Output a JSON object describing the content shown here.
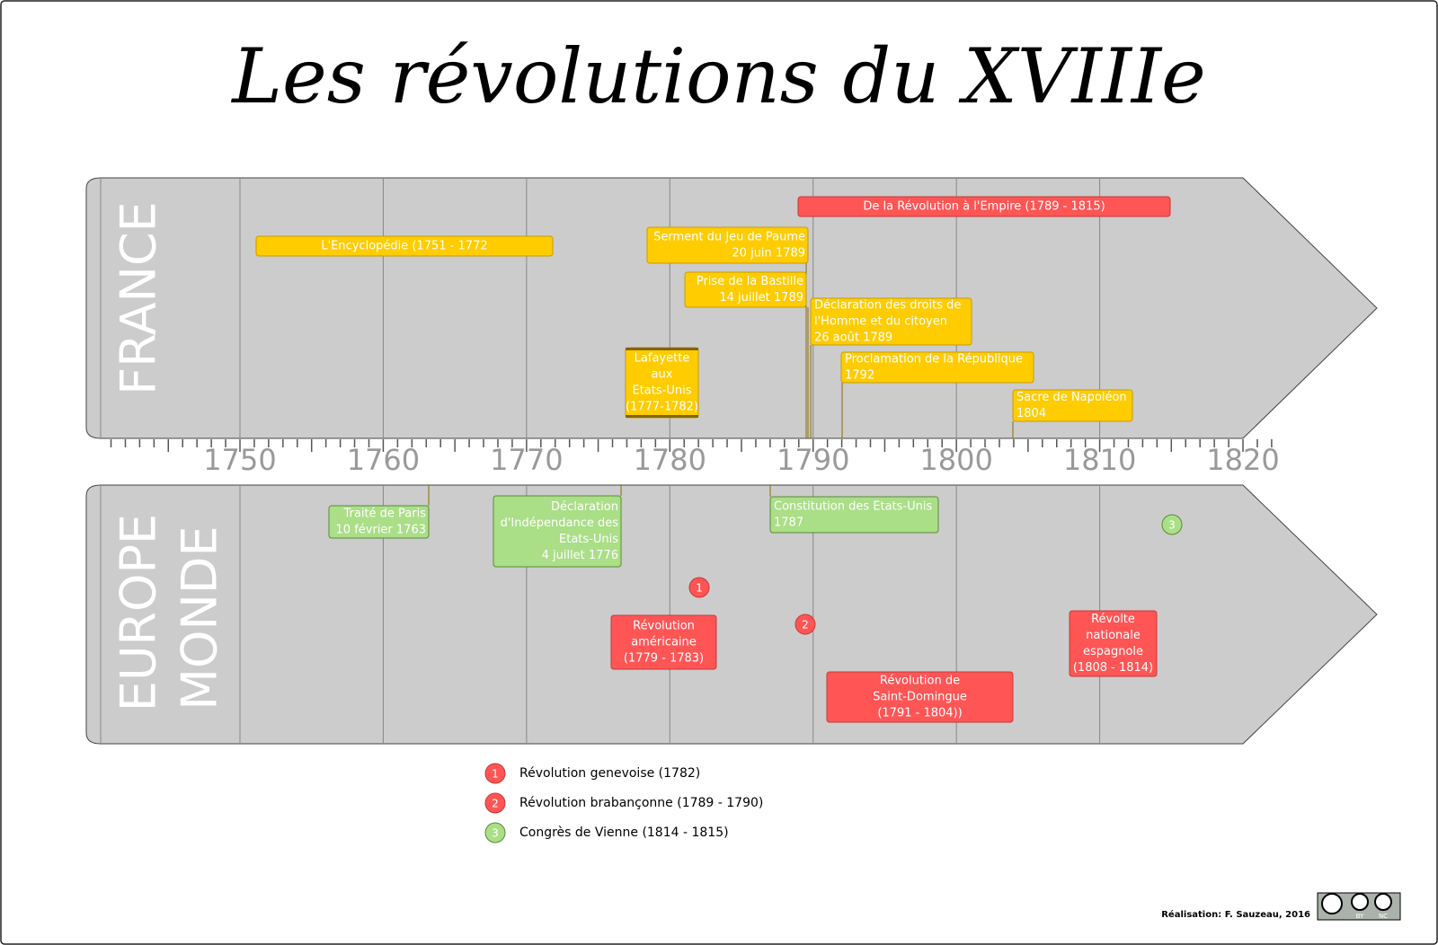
{
  "title": "Les révolutions du XVIIIe",
  "france": {
    "label": "FRANCE",
    "events": [
      {
        "lines": [
          "De la Révolution à l'Empire (1789 - 1815)"
        ],
        "color": "#ff5555"
      },
      {
        "lines": [
          "L'Encyclopédie (1751 - 1772"
        ],
        "color": "#ffcc00"
      },
      {
        "lines": [
          "Serment du Jeu de Paume",
          "20 juin 1789"
        ],
        "color": "#ffcc00"
      },
      {
        "lines": [
          "Prise de la Bastille",
          "14 juillet 1789"
        ],
        "color": "#ffcc00"
      },
      {
        "lines": [
          "Déclaration des droits de",
          "l'Homme et du citoyen",
          "26 août 1789"
        ],
        "color": "#ffcc00"
      },
      {
        "lines": [
          "Lafayette",
          "aux",
          "Etats-Unis",
          "(1777-1782)"
        ],
        "color": "#ffcc00"
      },
      {
        "lines": [
          "Proclamation de la République",
          "1792"
        ],
        "color": "#ffcc00"
      },
      {
        "lines": [
          "Sacre de Napoléon",
          "1804"
        ],
        "color": "#ffcc00"
      }
    ]
  },
  "monde": {
    "label": [
      "EUROPE",
      "MONDE"
    ],
    "events": [
      {
        "lines": [
          "Traité de Paris",
          "10 février 1763"
        ],
        "color": "#aade87"
      },
      {
        "lines": [
          "Déclaration",
          "d'Indépendance des",
          "Etats-Unis",
          "4 juillet 1776"
        ],
        "color": "#aade87"
      },
      {
        "lines": [
          "Constitution des Etats-Unis",
          "1787"
        ],
        "color": "#aade87"
      },
      {
        "lines": [
          "Révolution",
          "américaine",
          "(1779 - 1783)"
        ],
        "color": "#ff5555"
      },
      {
        "lines": [
          "Révolution de",
          "Saint-Domingue",
          "(1791 - 1804))"
        ],
        "color": "#ff5555"
      },
      {
        "lines": [
          "Révolte",
          "nationale",
          "espagnole",
          "(1808 - 1814)"
        ],
        "color": "#ff5555"
      }
    ],
    "markers": [
      {
        "label": "1",
        "color": "#ff5555"
      },
      {
        "label": "2",
        "color": "#ff5555"
      },
      {
        "label": "3",
        "color": "#aade87"
      }
    ]
  },
  "axis": {
    "labels": [
      "1750",
      "1760",
      "1770",
      "1780",
      "1790",
      "1800",
      "1810",
      "1820"
    ]
  },
  "legend": [
    {
      "number": "1",
      "text": "Révolution genevoise (1782)",
      "color": "#ff5555"
    },
    {
      "number": "2",
      "text": "Révolution brabançonne (1789 - 1790)",
      "color": "#ff5555"
    },
    {
      "number": "3",
      "text": "Congrès de Vienne (1814 - 1815)",
      "color": "#aade87"
    }
  ],
  "credit": "Réalisation: F. Sauzeau, 2016",
  "license": [
    "BY",
    "NC"
  ]
}
